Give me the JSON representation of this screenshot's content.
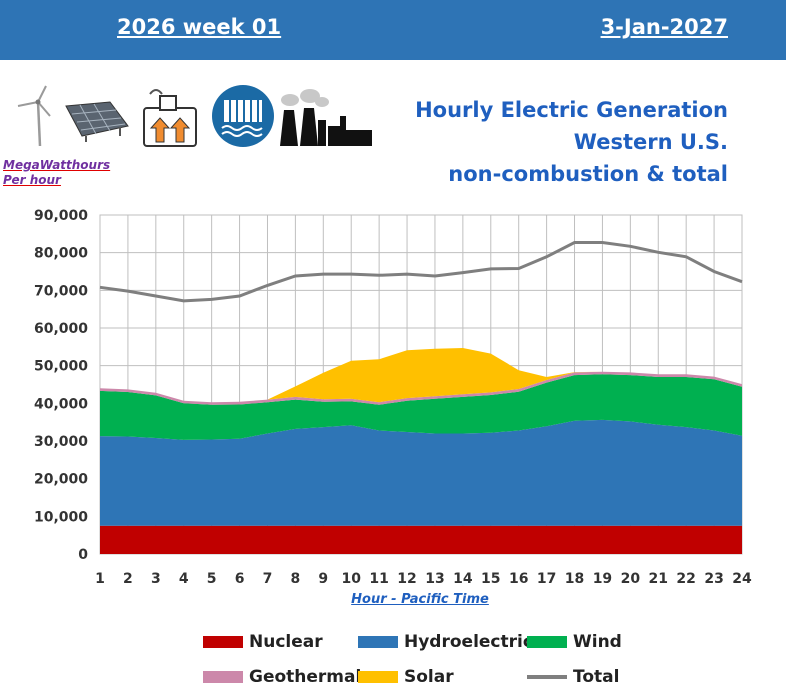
{
  "header": {
    "left": "2026 week 01",
    "right": "3-Jan-2027"
  },
  "icons": [
    "wind-turbine-icon",
    "solar-panel-icon",
    "geothermal-icon",
    "hydroelectric-dam-icon",
    "power-plant-icon"
  ],
  "units": {
    "line1": "MegaWatthours",
    "line2": "Per hour"
  },
  "titles": {
    "line1": "Hourly Electric Generation",
    "line2": "Western U.S.",
    "line3": "non-combustion & total"
  },
  "colors": {
    "header": "#2e74b5",
    "title": "#1f5fbf",
    "nuclear": "#c00000",
    "hydro": "#2e75b6",
    "wind": "#00b050",
    "geothermal": "#cc88aa",
    "solar": "#ffc000",
    "total": "#7f7f7f"
  },
  "chart_data": {
    "type": "area",
    "title": "Hourly Electric Generation Western U.S. non-combustion & total",
    "xlabel": "Hour - Pacific Time",
    "ylabel": "MegaWatthours Per hour",
    "ylim": [
      0,
      90000
    ],
    "yticks": [
      "0",
      "10,000",
      "20,000",
      "30,000",
      "40,000",
      "50,000",
      "60,000",
      "70,000",
      "80,000",
      "90,000"
    ],
    "x": [
      1,
      2,
      3,
      4,
      5,
      6,
      7,
      8,
      9,
      10,
      11,
      12,
      13,
      14,
      15,
      16,
      17,
      18,
      19,
      20,
      21,
      22,
      23,
      24
    ],
    "grid": true,
    "legend_position": "bottom",
    "series": [
      {
        "name": "Nuclear",
        "kind": "stack",
        "values": [
          7500,
          7500,
          7500,
          7500,
          7500,
          7500,
          7500,
          7500,
          7500,
          7500,
          7500,
          7500,
          7500,
          7500,
          7500,
          7500,
          7500,
          7500,
          7500,
          7500,
          7500,
          7500,
          7500,
          7500
        ]
      },
      {
        "name": "Hydroelectric",
        "kind": "stack",
        "values": [
          23800,
          23700,
          23300,
          22800,
          22900,
          23100,
          24500,
          25700,
          26200,
          26700,
          25300,
          24900,
          24500,
          24500,
          24700,
          25300,
          26400,
          27900,
          28100,
          27700,
          26800,
          26200,
          25300,
          23900
        ]
      },
      {
        "name": "Wind",
        "kind": "stack",
        "values": [
          12000,
          11800,
          11300,
          9700,
          9200,
          9100,
          8300,
          7800,
          6700,
          6300,
          6800,
          8300,
          9200,
          9700,
          10000,
          10300,
          11600,
          12100,
          12100,
          12300,
          12700,
          13300,
          13600,
          13000
        ]
      },
      {
        "name": "Geothermal",
        "kind": "stack",
        "values": [
          700,
          700,
          700,
          700,
          700,
          700,
          700,
          700,
          700,
          700,
          700,
          700,
          700,
          700,
          700,
          700,
          700,
          700,
          700,
          700,
          700,
          700,
          700,
          700
        ]
      },
      {
        "name": "Solar",
        "kind": "stack",
        "values": [
          0,
          0,
          0,
          0,
          0,
          0,
          0,
          2800,
          7000,
          10100,
          11400,
          12700,
          12600,
          12300,
          10300,
          5000,
          800,
          100,
          0,
          0,
          0,
          0,
          0,
          0
        ]
      },
      {
        "name": "Total",
        "kind": "line",
        "values": [
          70800,
          69800,
          68500,
          67200,
          67600,
          68500,
          71300,
          73800,
          74300,
          74300,
          74000,
          74300,
          73800,
          74700,
          75700,
          75800,
          78900,
          82700,
          82700,
          81700,
          80100,
          78900,
          75000,
          72300
        ]
      }
    ]
  },
  "legend": [
    {
      "name": "Nuclear",
      "color": "#c00000",
      "line": false
    },
    {
      "name": "Hydroelectric",
      "color": "#2e75b6",
      "line": false
    },
    {
      "name": "Wind",
      "color": "#00b050",
      "line": false
    },
    {
      "name": "Geothermal",
      "color": "#cc88aa",
      "line": false
    },
    {
      "name": "Solar",
      "color": "#ffc000",
      "line": false
    },
    {
      "name": "Total",
      "color": "#7f7f7f",
      "line": true
    }
  ]
}
